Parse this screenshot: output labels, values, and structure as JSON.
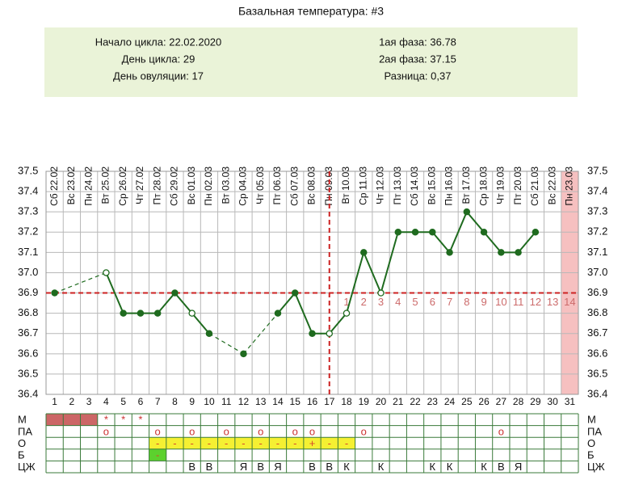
{
  "header": {
    "title": "Базальная температура: #3",
    "info_left": [
      "Начало цикла: 22.02.2020",
      "День цикла: 29",
      "День овуляции: 17"
    ],
    "info_right": [
      "1ая фаза: 36.78",
      "2ая фаза: 37.15",
      "Разница: 0,37"
    ]
  },
  "chart_data": {
    "type": "line",
    "categories": [
      "Сб 22.02",
      "Вс 23.02",
      "Пн 24.02",
      "Вт 25.02",
      "Ср 26.02",
      "Чт 27.02",
      "Пт 28.02",
      "Сб 29.02",
      "Вс 01.03",
      "Пн 02.03",
      "Вт 03.03",
      "Ср 04.03",
      "Чт 05.03",
      "Пт 06.03",
      "Сб 07.03",
      "Вс 08.03",
      "Пн 09.03",
      "Вт 10.03",
      "Ср 11.03",
      "Чт 12.03",
      "Пт 13.03",
      "Сб 14.03",
      "Вс 15.03",
      "Пн 16.03",
      "Вт 17.03",
      "Ср 18.03",
      "Чт 19.03",
      "Пт 20.03",
      "Сб 21.03",
      "Вс 22.03",
      "Пн 23.03"
    ],
    "x": [
      1,
      2,
      3,
      4,
      5,
      6,
      7,
      8,
      9,
      10,
      11,
      12,
      13,
      14,
      15,
      16,
      17,
      18,
      19,
      20,
      21,
      22,
      23,
      24,
      25,
      26,
      27,
      28,
      29,
      30,
      31
    ],
    "xlim": [
      0.5,
      31.5
    ],
    "xticks": [
      1,
      2,
      3,
      4,
      5,
      6,
      7,
      8,
      9,
      10,
      11,
      12,
      13,
      14,
      15,
      16,
      17,
      18,
      19,
      20,
      21,
      22,
      23,
      24,
      25,
      26,
      27,
      28,
      29,
      30,
      31
    ],
    "ylim": [
      36.4,
      37.5
    ],
    "yticks": [
      36.4,
      36.5,
      36.6,
      36.7,
      36.8,
      36.9,
      {
        "value": 37.0,
        "label": "37.0"
      },
      37.1,
      37.2,
      37.3,
      37.4,
      37.5
    ],
    "grid": true,
    "series": [
      {
        "color": "#1f6b1f",
        "values": [
          36.9,
          null,
          null,
          37.0,
          36.8,
          36.8,
          36.8,
          36.9,
          36.8,
          36.7,
          null,
          36.6,
          null,
          36.8,
          36.9,
          36.7,
          36.7,
          36.8,
          37.1,
          36.9,
          37.2,
          37.2,
          37.2,
          37.1,
          37.3,
          37.2,
          37.1,
          37.1,
          37.2,
          null,
          null
        ],
        "markers": [
          "filled",
          null,
          null,
          "open",
          "filled",
          "filled",
          "filled",
          "filled",
          "open",
          "filled",
          null,
          "filled",
          null,
          "filled",
          "filled",
          "filled",
          "open",
          "open",
          "filled",
          "open",
          "filled",
          "filled",
          "filled",
          "filled",
          "filled",
          "filled",
          "filled",
          "filled",
          "filled",
          null,
          null
        ]
      }
    ],
    "coverline": {
      "value": 36.9,
      "color": "#cc2222"
    },
    "ovulation_day": 17,
    "luteal_labels": {
      "start_day": 18,
      "labels": [
        1,
        2,
        3,
        4,
        5,
        6,
        7,
        8,
        9,
        10,
        11,
        12,
        13,
        14
      ],
      "color": "#cc6a6a"
    },
    "highlight_days": [
      31
    ],
    "highlight_color": "#f6c0c0"
  },
  "table": {
    "rows": [
      {
        "label": "М",
        "text_color": "#cc3333",
        "fill_color": "#cc6666",
        "fill_days": [
          1,
          2,
          3
        ],
        "cells": [
          null,
          null,
          null,
          "*",
          "*",
          "*",
          null,
          null,
          null,
          null,
          null,
          null,
          null,
          null,
          null,
          null,
          null,
          null,
          null,
          null,
          null,
          null,
          null,
          null,
          null,
          null,
          null,
          null,
          null,
          null,
          null
        ]
      },
      {
        "label": "ПА",
        "text_color": "#cc3333",
        "fill_color": null,
        "fill_days": [],
        "cells": [
          null,
          null,
          null,
          "o",
          null,
          null,
          "o",
          null,
          "o",
          null,
          "o",
          null,
          "o",
          null,
          "o",
          "o",
          null,
          null,
          "o",
          null,
          null,
          null,
          null,
          null,
          null,
          null,
          "o",
          null,
          null,
          null,
          null
        ]
      },
      {
        "label": "О",
        "text_color": "#d9482b",
        "fill_color": "#f5f032",
        "fill_days": [
          7,
          8,
          9,
          10,
          11,
          12,
          13,
          14,
          15,
          16,
          17,
          18
        ],
        "cells": [
          null,
          null,
          null,
          null,
          null,
          null,
          "-",
          "-",
          "-",
          "-",
          "-",
          "-",
          "-",
          "-",
          "-",
          "+",
          "-",
          "-",
          null,
          null,
          null,
          null,
          null,
          null,
          null,
          null,
          null,
          null,
          null,
          null,
          null
        ]
      },
      {
        "label": "Б",
        "text_color": "#d9482b",
        "fill_color": "#5cd12e",
        "fill_days": [
          7
        ],
        "cells": [
          null,
          null,
          null,
          null,
          null,
          null,
          "-",
          null,
          null,
          null,
          null,
          null,
          null,
          null,
          null,
          null,
          null,
          null,
          null,
          null,
          null,
          null,
          null,
          null,
          null,
          null,
          null,
          null,
          null,
          null,
          null
        ]
      },
      {
        "label": "ЦЖ",
        "text_color": "#111111",
        "fill_color": null,
        "fill_days": [],
        "cells": [
          null,
          null,
          null,
          null,
          null,
          null,
          null,
          null,
          "В",
          "В",
          null,
          "Я",
          "В",
          "Я",
          null,
          "В",
          "В",
          "К",
          null,
          "К",
          null,
          null,
          "К",
          "К",
          null,
          "К",
          "В",
          "Я",
          null,
          null,
          null
        ]
      }
    ]
  }
}
